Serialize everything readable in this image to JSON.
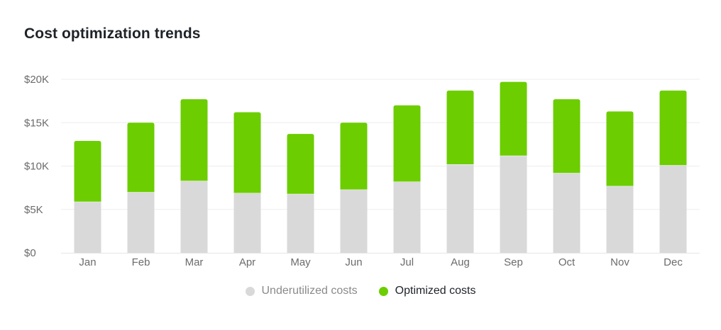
{
  "chart_data": {
    "type": "bar",
    "stacked": true,
    "title": "Cost optimization trends",
    "categories": [
      "Jan",
      "Feb",
      "Mar",
      "Apr",
      "May",
      "Jun",
      "Jul",
      "Aug",
      "Sep",
      "Oct",
      "Nov",
      "Dec"
    ],
    "series": [
      {
        "name": "Underutilized costs",
        "color": "#d9d9d9",
        "values": [
          5900,
          7000,
          8300,
          6900,
          6800,
          7300,
          8200,
          10200,
          11200,
          9200,
          7700,
          10100
        ]
      },
      {
        "name": "Optimized costs",
        "color": "#6ccd00",
        "values": [
          7000,
          8000,
          9400,
          9300,
          6900,
          7700,
          8800,
          8500,
          8500,
          8500,
          8600,
          8600
        ]
      }
    ],
    "yticks": [
      "$0",
      "$5K",
      "$10K",
      "$15K",
      "$20K"
    ],
    "ylim": [
      0,
      20000
    ],
    "xlabel": "",
    "ylabel": "",
    "grid": true,
    "legend_position": "bottom-center"
  }
}
